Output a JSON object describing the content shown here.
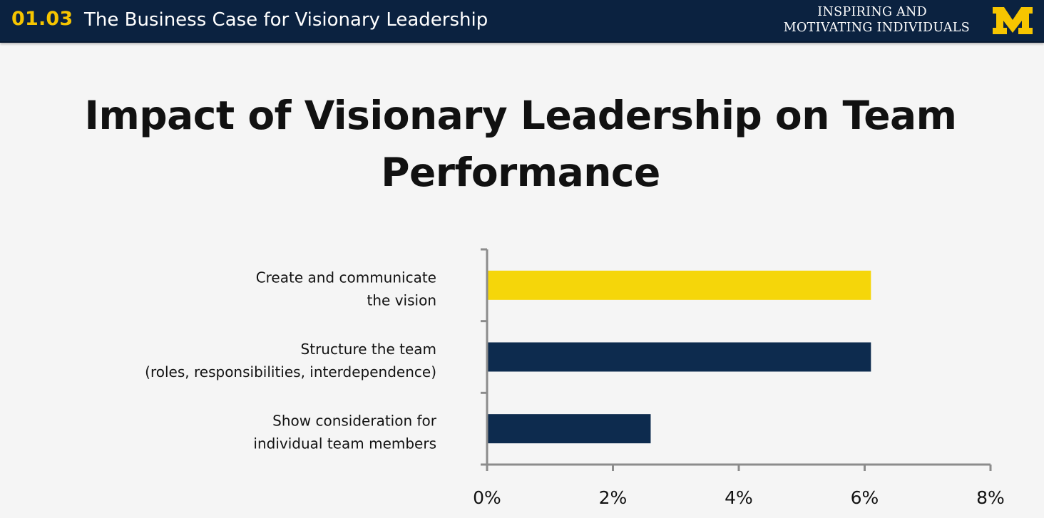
{
  "header": {
    "lesson_number": "01.03",
    "lesson_title": "The Business Case for Visionary Leadership",
    "course_line1": "INSPIRING AND",
    "course_line2": "MOTIVATING INDIVIDUALS",
    "logo_letter": "M"
  },
  "colors": {
    "header_bg": "#0b2240",
    "maize": "#f6c500",
    "bar_yellow": "#f5d60a",
    "bar_navy": "#0d2b4e"
  },
  "slide": {
    "title_line1": "Impact of Visionary Leadership on Team",
    "title_line2": "Performance"
  },
  "chart_data": {
    "type": "bar",
    "orientation": "horizontal",
    "title": "",
    "xlabel": "",
    "ylabel": "",
    "categories": [
      [
        "Create and communicate",
        "the vision"
      ],
      [
        "Structure the team",
        "(roles, responsibilities, interdependence)"
      ],
      [
        "Show consideration for",
        "individual team members"
      ]
    ],
    "values": [
      0.061,
      0.061,
      0.026
    ],
    "bar_colors": [
      "#f5d60a",
      "#0d2b4e",
      "#0d2b4e"
    ],
    "xlim": [
      0,
      0.08
    ],
    "xticks": [
      0,
      0.02,
      0.04,
      0.06,
      0.08
    ],
    "xtick_labels": [
      "0%",
      "2%",
      "4%",
      "6%",
      "8%"
    ],
    "grid": false,
    "legend": "none"
  }
}
